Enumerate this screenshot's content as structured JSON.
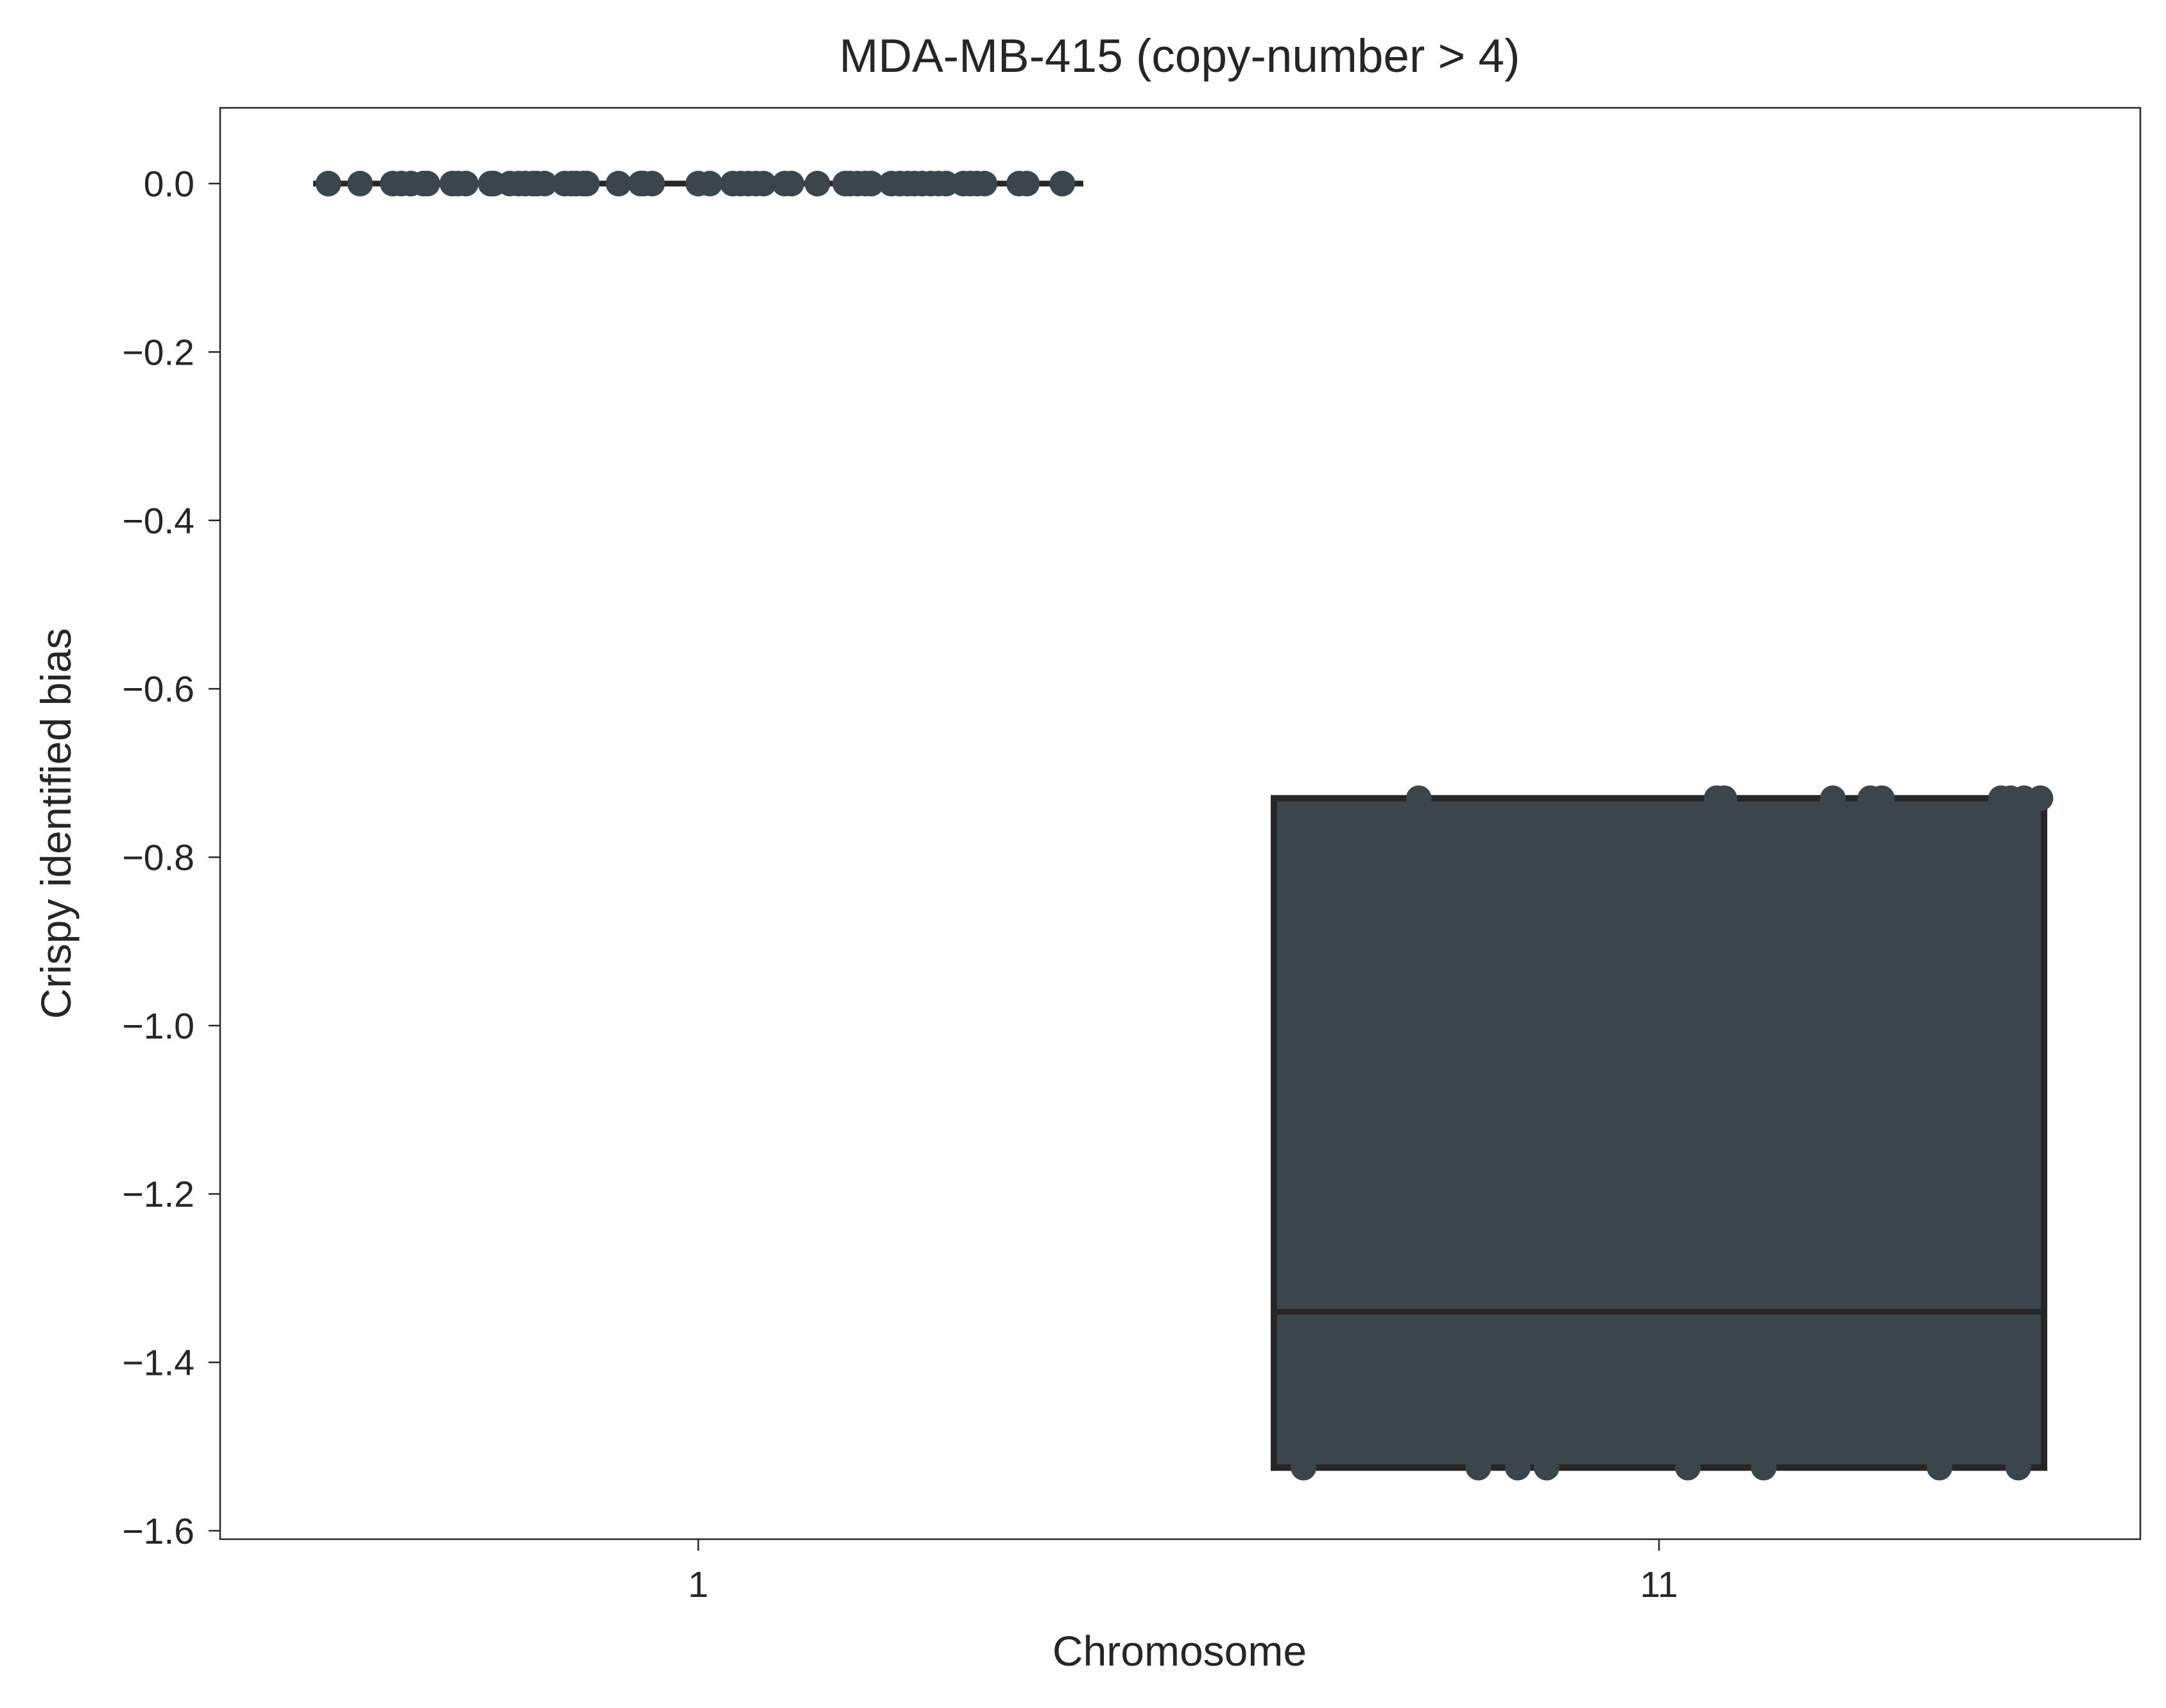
{
  "chart_data": {
    "type": "box",
    "title": "MDA-MB-415 (copy-number > 4)",
    "xlabel": "Chromosome",
    "ylabel": "Crispy identified bias",
    "categories": [
      "1",
      "11"
    ],
    "ylim": [
      -1.61,
      0.09
    ],
    "yticks": [
      0.0,
      -0.2,
      -0.4,
      -0.6,
      -0.8,
      -1.0,
      -1.2,
      -1.4,
      -1.6
    ],
    "ytick_labels": [
      "0.0",
      "−0.2",
      "−0.4",
      "−0.6",
      "−0.8",
      "−1.0",
      "−1.2",
      "−1.4",
      "−1.6"
    ],
    "grid": false,
    "legend": false,
    "colors": {
      "box_fill": "#3a464b",
      "box_edge": "#262626",
      "point": "#3a464b",
      "axis": "#262626"
    },
    "boxes": [
      {
        "category": "1",
        "min": 0.0,
        "q1": 0.0,
        "median": 0.0,
        "q3": 0.0,
        "max": 0.0
      },
      {
        "category": "11",
        "min": -1.525,
        "q1": -1.525,
        "median": -1.34,
        "q3": -0.73,
        "max": -0.73
      }
    ],
    "points": [
      {
        "category": "1",
        "y": 0.0,
        "x_offsets": [
          -0.385,
          -0.352,
          -0.318,
          -0.309,
          -0.299,
          -0.286,
          -0.282,
          -0.256,
          -0.25,
          -0.242,
          -0.216,
          -0.213,
          -0.196,
          -0.187,
          -0.18,
          -0.172,
          -0.168,
          -0.16,
          -0.139,
          -0.132,
          -0.127,
          -0.12,
          -0.116,
          -0.083,
          -0.06,
          -0.057,
          -0.048,
          0.0,
          0.012,
          0.036,
          0.044,
          0.052,
          0.06,
          0.068,
          0.09,
          0.097,
          0.124,
          0.153,
          0.158,
          0.166,
          0.174,
          0.18,
          0.201,
          0.21,
          0.218,
          0.225,
          0.233,
          0.242,
          0.25,
          0.258,
          0.276,
          0.283,
          0.29,
          0.298,
          0.334,
          0.342,
          0.379
        ]
      },
      {
        "category": "11",
        "y": -0.73,
        "x_offsets": [
          -0.25,
          0.06,
          0.068,
          0.181,
          0.22,
          0.232,
          0.356,
          0.366,
          0.38,
          0.397
        ]
      },
      {
        "category": "11",
        "y": -1.525,
        "x_offsets": [
          -0.37,
          -0.188,
          -0.147,
          -0.117,
          0.03,
          0.109,
          0.292,
          0.374
        ]
      }
    ]
  }
}
